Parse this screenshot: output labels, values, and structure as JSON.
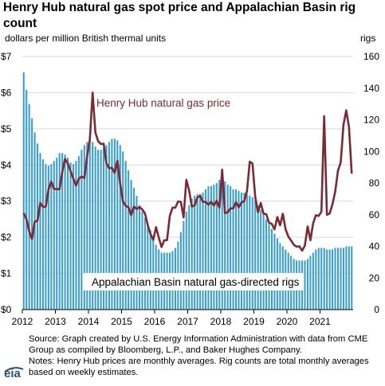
{
  "title": "Henry Hub natural gas spot price and Appalachian Basin rig count",
  "chart_data": {
    "type": "bar+line",
    "ylabel_left": "dollars per million British thermal units",
    "ylabel_right": "rigs",
    "left_ticks": [
      "$0",
      "$1",
      "$2",
      "$3",
      "$4",
      "$5",
      "$6",
      "$7"
    ],
    "right_ticks": [
      "0",
      "20",
      "40",
      "60",
      "80",
      "100",
      "120",
      "140",
      "160"
    ],
    "x_ticks": [
      "2012",
      "2013",
      "2014",
      "2015",
      "2016",
      "2017",
      "2018",
      "2019",
      "2020",
      "2021"
    ],
    "ylim_left": [
      0,
      7
    ],
    "ylim_right": [
      0,
      160
    ],
    "x_start": "2012-01",
    "x_end": "2021-12",
    "series": [
      {
        "name": "Henry Hub natural gas price",
        "type": "line",
        "axis": "left",
        "color": "#7b2a35",
        "values": [
          2.67,
          2.5,
          2.17,
          1.95,
          2.43,
          2.46,
          2.95,
          2.84,
          2.85,
          3.32,
          3.54,
          3.34,
          3.33,
          3.33,
          3.81,
          4.17,
          4.04,
          3.83,
          3.62,
          3.43,
          3.62,
          3.68,
          3.64,
          4.24,
          4.71,
          6.0,
          4.9,
          4.66,
          4.58,
          4.59,
          4.05,
          3.91,
          3.92,
          3.78,
          4.12,
          3.48,
          2.99,
          2.87,
          2.83,
          2.61,
          2.85,
          2.78,
          2.84,
          2.77,
          2.66,
          2.34,
          2.09,
          1.93,
          2.28,
          1.99,
          1.73,
          1.92,
          1.92,
          2.59,
          2.82,
          2.82,
          2.99,
          2.98,
          2.55,
          3.59,
          3.3,
          2.85,
          2.88,
          3.1,
          3.15,
          2.98,
          2.98,
          2.9,
          2.98,
          2.88,
          3.01,
          2.82,
          3.87,
          2.67,
          2.69,
          2.8,
          2.8,
          2.97,
          2.83,
          2.96,
          3.0,
          3.28,
          4.09,
          4.04,
          3.11,
          2.69,
          2.95,
          2.65,
          2.64,
          2.4,
          2.37,
          2.22,
          2.56,
          2.33,
          2.65,
          2.22,
          2.02,
          1.91,
          1.79,
          1.74,
          1.75,
          1.63,
          1.77,
          2.3,
          1.92,
          2.39,
          2.61,
          2.59,
          2.71,
          5.35,
          2.62,
          2.66,
          2.91,
          3.26,
          3.84,
          4.07,
          5.11,
          5.51,
          5.05,
          3.76
        ],
        "label": "Henry Hub natural gas price"
      },
      {
        "name": "Appalachian Basin natural gas-directed rigs",
        "type": "bar",
        "axis": "right",
        "color": "#3a9fcf",
        "values": [
          150,
          139,
          130,
          121,
          112,
          105,
          99,
          95,
          92,
          91,
          92,
          94,
          96,
          99,
          99,
          98,
          96,
          93,
          92,
          94,
          97,
          101,
          104,
          106,
          108,
          106,
          103,
          101,
          101,
          102,
          104,
          106,
          108,
          108,
          107,
          104,
          100,
          94,
          88,
          82,
          77,
          72,
          66,
          62,
          58,
          54,
          50,
          46,
          41,
          38,
          36,
          36,
          36,
          36,
          37,
          39,
          43,
          49,
          56,
          62,
          66,
          70,
          72,
          73,
          73,
          74,
          76,
          78,
          78,
          79,
          80,
          82,
          83,
          81,
          79,
          78,
          76,
          76,
          75,
          74,
          74,
          73,
          72,
          71,
          69,
          66,
          63,
          60,
          57,
          54,
          51,
          48,
          45,
          42,
          40,
          38,
          36,
          34,
          32,
          31,
          31,
          31,
          31,
          32,
          34,
          36,
          38,
          39,
          39,
          39,
          38,
          38,
          38,
          39,
          39,
          39,
          39,
          40,
          40,
          40
        ],
        "label": "Appalachian Basin natural gas-directed rigs"
      }
    ],
    "grid": true
  },
  "source_text": "Source: Graph created by U.S. Energy Information Administration with data from CME Group as compiled by Bloomberg, L.P., and Baker Hughes Company.",
  "notes_text": "Notes: Henry Hub prices are monthly averages. Rig counts are total monthly averages based on weekly estimates.",
  "logo": {
    "text": "eia"
  }
}
